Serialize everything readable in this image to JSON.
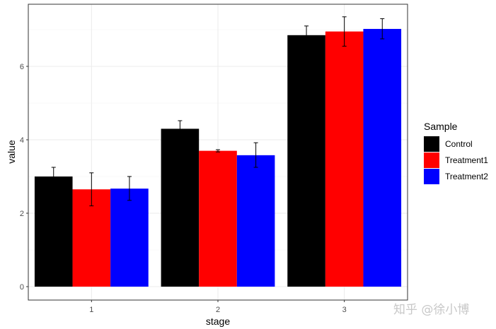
{
  "chart_data": {
    "type": "bar",
    "title": "",
    "xlabel": "stage",
    "ylabel": "value",
    "categories": [
      "1",
      "2",
      "3"
    ],
    "ylim": [
      -0.35,
      7.7
    ],
    "yticks": [
      0,
      2,
      4,
      6
    ],
    "grid": true,
    "error_bars": true,
    "legend": {
      "title": "Sample",
      "placement": "right"
    },
    "series": [
      {
        "name": "Control",
        "color": "#000000",
        "values": [
          3.0,
          4.3,
          6.85
        ],
        "err_low": [
          2.75,
          4.05,
          6.6
        ],
        "err_high": [
          3.25,
          4.52,
          7.1
        ]
      },
      {
        "name": "Treatment1",
        "color": "#ff0000",
        "values": [
          2.65,
          3.7,
          6.95
        ],
        "err_low": [
          2.2,
          3.67,
          6.55
        ],
        "err_high": [
          3.1,
          3.73,
          7.35
        ]
      },
      {
        "name": "Treatment2",
        "color": "#0000ff",
        "values": [
          2.67,
          3.58,
          7.02
        ],
        "err_low": [
          2.35,
          3.25,
          6.75
        ],
        "err_high": [
          3.0,
          3.92,
          7.3
        ]
      }
    ]
  },
  "watermark": "知乎 @徐小博"
}
